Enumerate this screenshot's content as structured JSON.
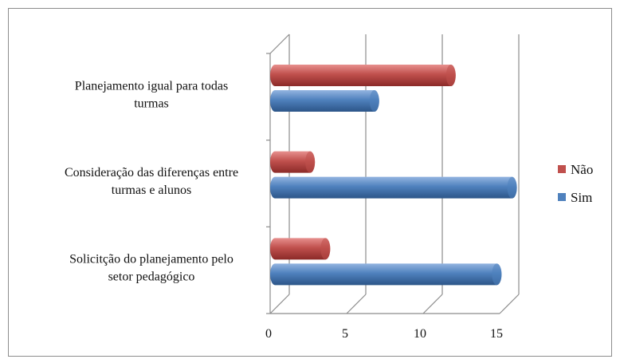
{
  "chart_data": {
    "type": "bar",
    "orientation": "horizontal",
    "style": "3d-cylinder",
    "categories": [
      [
        "Planejamento igual para todas",
        "turmas"
      ],
      [
        "Consideração das diferenças entre",
        "turmas e alunos"
      ],
      [
        "Solicitção do planejamento pelo",
        "setor pedagógico"
      ]
    ],
    "series": [
      {
        "name": "Não",
        "color": "#c0504d",
        "values": [
          11.5,
          2.3,
          3.3
        ]
      },
      {
        "name": "Sim",
        "color": "#4f81bd",
        "values": [
          6.5,
          15.5,
          14.5
        ]
      }
    ],
    "xticks": [
      "0",
      "5",
      "10",
      "15"
    ],
    "xlim": [
      0,
      15
    ],
    "title": "",
    "xlabel": "",
    "ylabel": "",
    "grid": true,
    "legend_position": "right"
  }
}
